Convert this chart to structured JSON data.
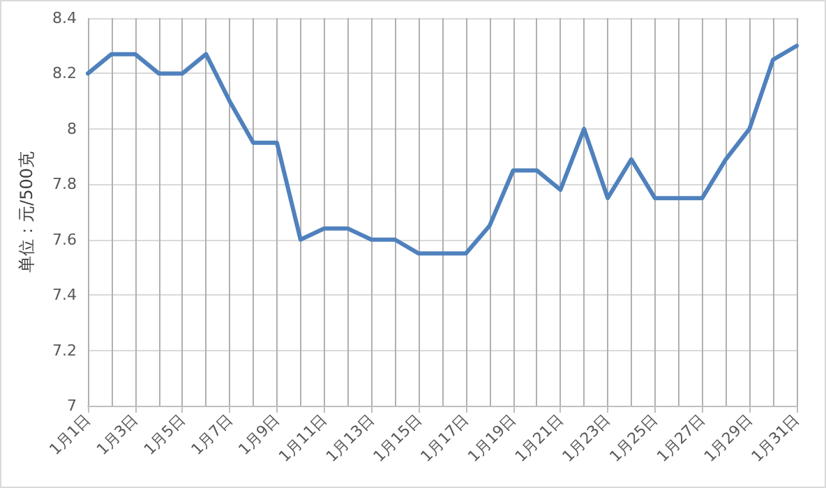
{
  "chart_data": {
    "type": "line",
    "ylabel": "单位：元/500克",
    "categories": [
      "1月1日",
      null,
      "1月3日",
      null,
      "1月5日",
      null,
      "1月7日",
      null,
      "1月9日",
      null,
      "1月11日",
      null,
      "1月13日",
      null,
      "1月15日",
      null,
      "1月17日",
      null,
      "1月19日",
      null,
      "1月21日",
      null,
      "1月23日",
      null,
      "1月25日",
      null,
      "1月27日",
      null,
      "1月29日",
      null,
      "1月31日"
    ],
    "series": [
      {
        "color": "#4f81bd",
        "values": [
          8.2,
          8.27,
          8.27,
          8.2,
          8.2,
          8.27,
          8.1,
          7.95,
          7.95,
          7.6,
          7.64,
          7.64,
          7.6,
          7.6,
          7.55,
          7.55,
          7.55,
          7.65,
          7.85,
          7.85,
          7.78,
          8.0,
          7.75,
          7.89,
          7.75,
          7.75,
          7.75,
          7.89,
          8.0,
          8.25,
          8.3
        ]
      }
    ],
    "ylim": [
      7,
      8.4
    ],
    "yticks": [
      7,
      7.2,
      7.4,
      7.6,
      7.8,
      8,
      8.2,
      8.4
    ],
    "grid": true,
    "marker": "none",
    "line_style": "solid"
  }
}
